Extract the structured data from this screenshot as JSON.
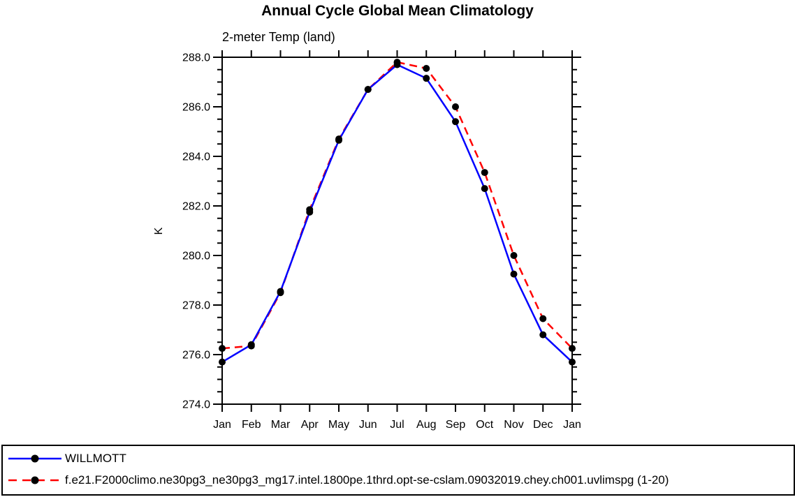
{
  "chart_data": {
    "type": "line",
    "title": "Annual Cycle Global Mean Climatology",
    "subtitle": "2-meter Temp (land)",
    "ylabel": "K",
    "x_categories": [
      "Jan",
      "Feb",
      "Mar",
      "Apr",
      "May",
      "Jun",
      "Jul",
      "Aug",
      "Sep",
      "Oct",
      "Nov",
      "Dec",
      "Jan"
    ],
    "ylim": [
      274.0,
      288.0
    ],
    "ytick_major_interval": 2.0,
    "ytick_minor_interval": 0.5,
    "ytick_labels": [
      "274.0",
      "276.0",
      "278.0",
      "280.0",
      "282.0",
      "284.0",
      "286.0",
      "288.0"
    ],
    "grid": false,
    "legend_position": "bottom-left-box",
    "axis_color": "#000000",
    "series": [
      {
        "name": "WILLMOTT",
        "color": "#0000ff",
        "line_style": "solid",
        "marker": "filled-circle",
        "marker_color": "#000000",
        "values": [
          275.7,
          276.4,
          278.55,
          281.75,
          284.65,
          286.7,
          287.7,
          287.15,
          285.4,
          282.7,
          279.25,
          276.8,
          275.7
        ]
      },
      {
        "name": "f.e21.F2000climo.ne30pg3_ne30pg3_mg17.intel.1800pe.1thrd.opt-se-cslam.09032019.chey.ch001.uvlimspg (1-20)",
        "color": "#ff0000",
        "line_style": "dashed",
        "marker": "filled-circle",
        "marker_color": "#000000",
        "values": [
          276.25,
          276.35,
          278.5,
          281.85,
          284.7,
          286.7,
          287.8,
          287.55,
          286.0,
          283.35,
          280.0,
          277.45,
          276.25
        ]
      }
    ]
  }
}
